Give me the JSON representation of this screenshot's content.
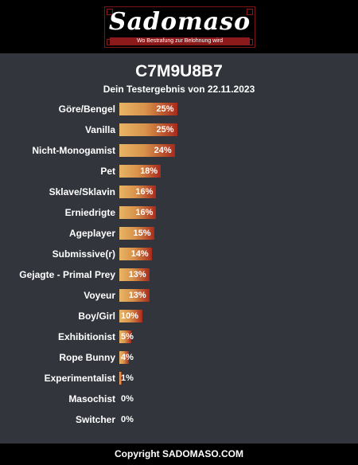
{
  "header": {
    "logo_text": "Sadomaso",
    "tagline": "Wo Bestrafung zur Belohnung wird"
  },
  "result": {
    "code": "C7M9U8B7",
    "subtitle": "Dein Testergebnis von 22.11.2023"
  },
  "chart_data": {
    "type": "bar",
    "categories": [
      "Göre/Bengel",
      "Vanilla",
      "Nicht-Monogamist",
      "Pet",
      "Sklave/Sklavin",
      "Erniedrigte",
      "Ageplayer",
      "Submissive(r)",
      "Gejagte - Primal Prey",
      "Voyeur",
      "Boy/Girl",
      "Exhibitionist",
      "Rope Bunny",
      "Experimentalist",
      "Masochist",
      "Switcher"
    ],
    "values": [
      25,
      25,
      24,
      18,
      16,
      16,
      15,
      14,
      13,
      13,
      10,
      5,
      4,
      1,
      0,
      0
    ],
    "value_labels": [
      "25%",
      "25%",
      "24%",
      "18%",
      "16%",
      "16%",
      "15%",
      "14%",
      "13%",
      "13%",
      "10%",
      "5%",
      "4%",
      "1%",
      "0%",
      "0%"
    ],
    "orientation": "horizontal",
    "colors": {
      "bar_start": "#e8b565",
      "bar_end": "#a82a1c"
    }
  },
  "footer": {
    "copyright": "Copyright SADOMASO.COM"
  },
  "colors": {
    "background": "#32363c",
    "header_bg": "#000000",
    "accent_red": "#8c1a1a"
  }
}
